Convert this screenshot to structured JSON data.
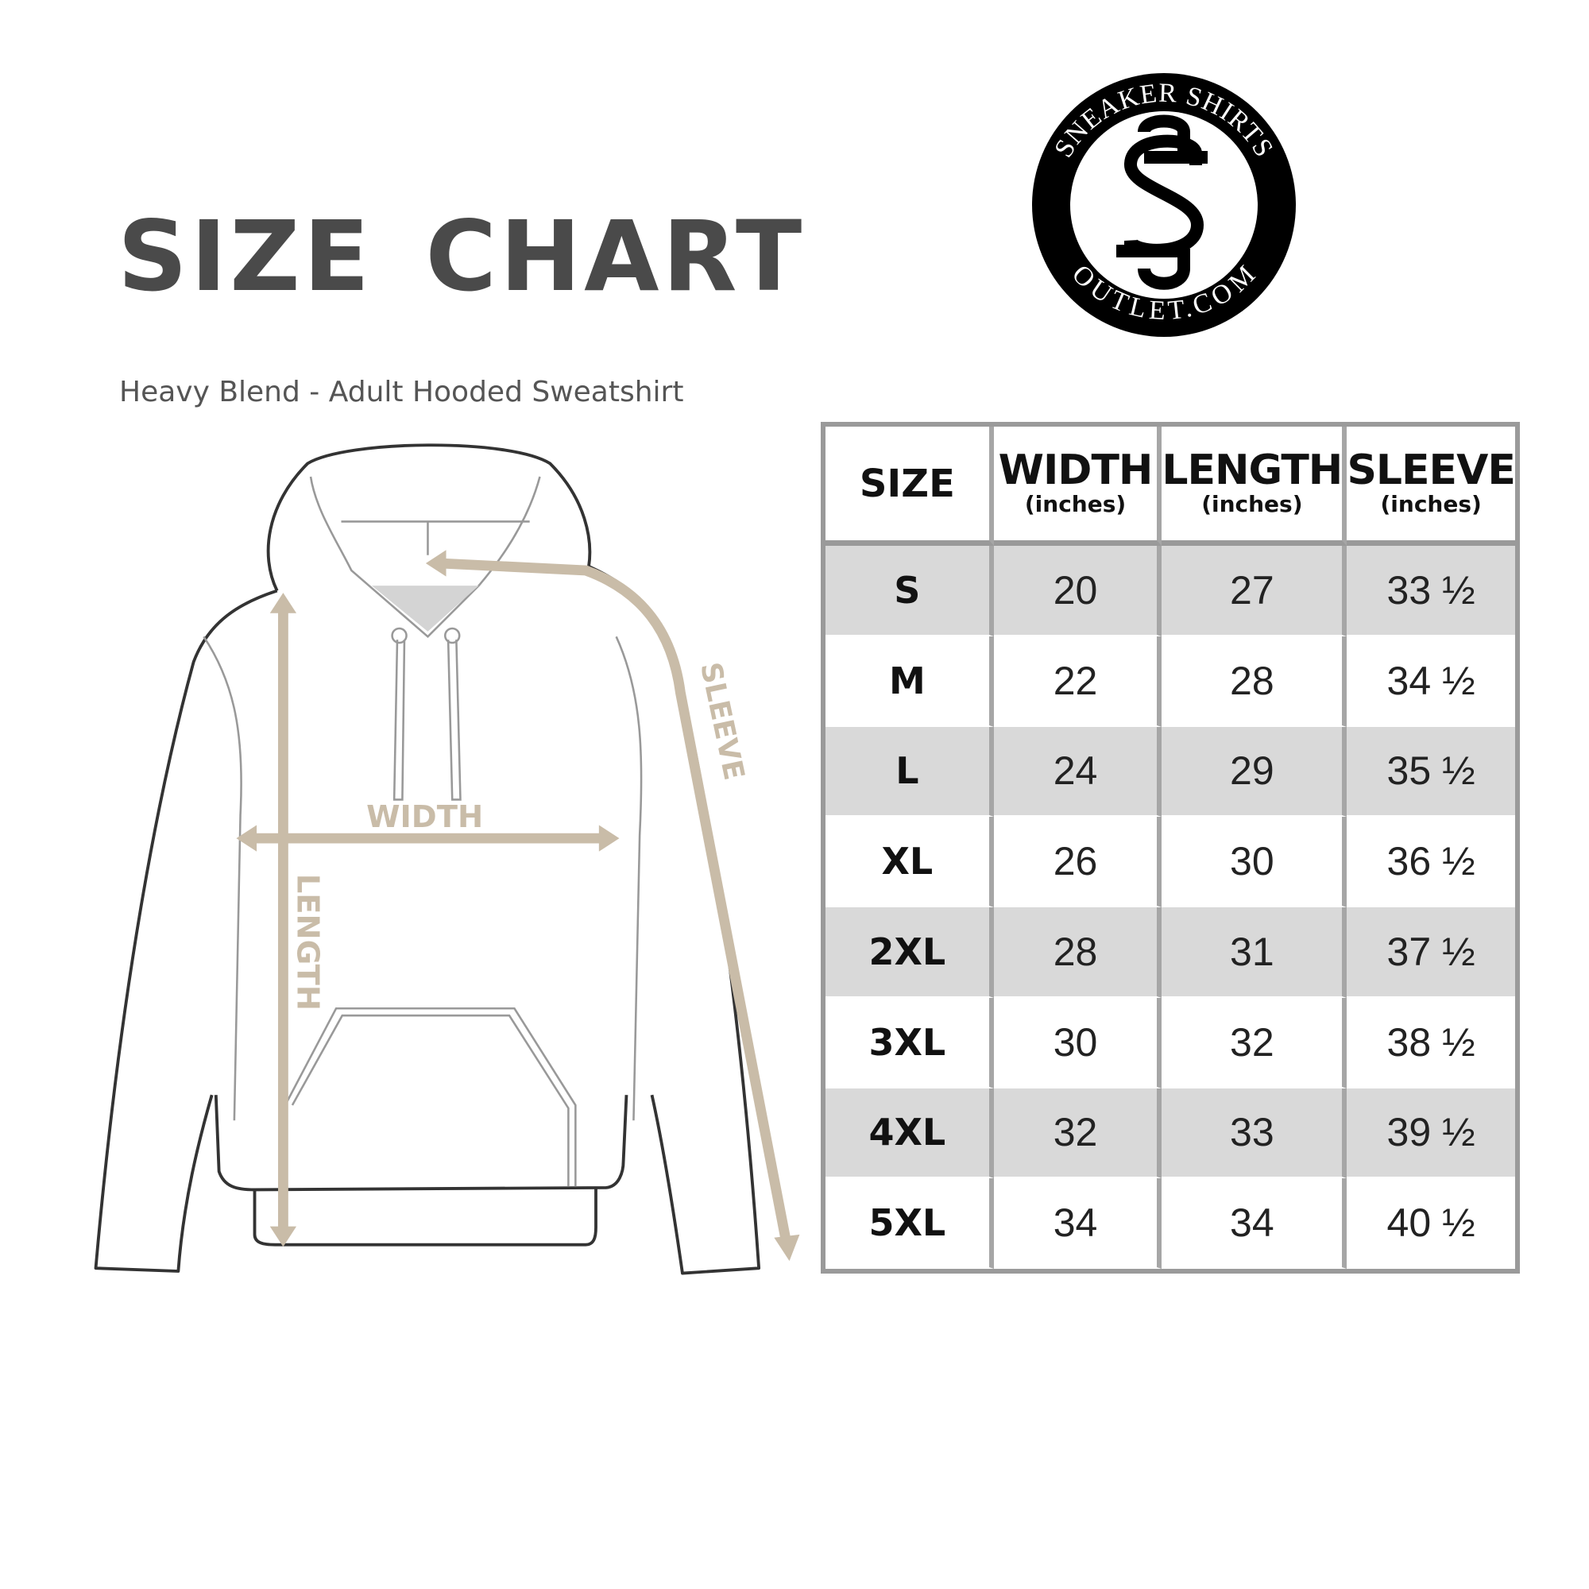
{
  "header": {
    "title": "SIZE CHART",
    "subtitle": "Heavy Blend - Adult Hooded Sweatshirt"
  },
  "logo": {
    "top_text": "SNEAKER SHIRTS",
    "bottom_text": "OUTLET.COM",
    "monogram": "SS"
  },
  "diagram": {
    "width_label": "WIDTH",
    "length_label": "LENGTH",
    "sleeve_label": "SLEEVE",
    "arrow_color": "#c9bca8"
  },
  "table": {
    "columns": [
      {
        "label": "SIZE",
        "unit": ""
      },
      {
        "label": "WIDTH",
        "unit": "(inches)"
      },
      {
        "label": "LENGTH",
        "unit": "(inches)"
      },
      {
        "label": "SLEEVE",
        "unit": "(inches)"
      }
    ],
    "rows": [
      {
        "size": "S",
        "width": "20",
        "length": "27",
        "sleeve": "33 ½"
      },
      {
        "size": "M",
        "width": "22",
        "length": "28",
        "sleeve": "34 ½"
      },
      {
        "size": "L",
        "width": "24",
        "length": "29",
        "sleeve": "35 ½"
      },
      {
        "size": "XL",
        "width": "26",
        "length": "30",
        "sleeve": "36 ½"
      },
      {
        "size": "2XL",
        "width": "28",
        "length": "31",
        "sleeve": "37 ½"
      },
      {
        "size": "3XL",
        "width": "30",
        "length": "32",
        "sleeve": "38 ½"
      },
      {
        "size": "4XL",
        "width": "32",
        "length": "33",
        "sleeve": "39 ½"
      },
      {
        "size": "5XL",
        "width": "34",
        "length": "34",
        "sleeve": "40 ½"
      }
    ]
  }
}
